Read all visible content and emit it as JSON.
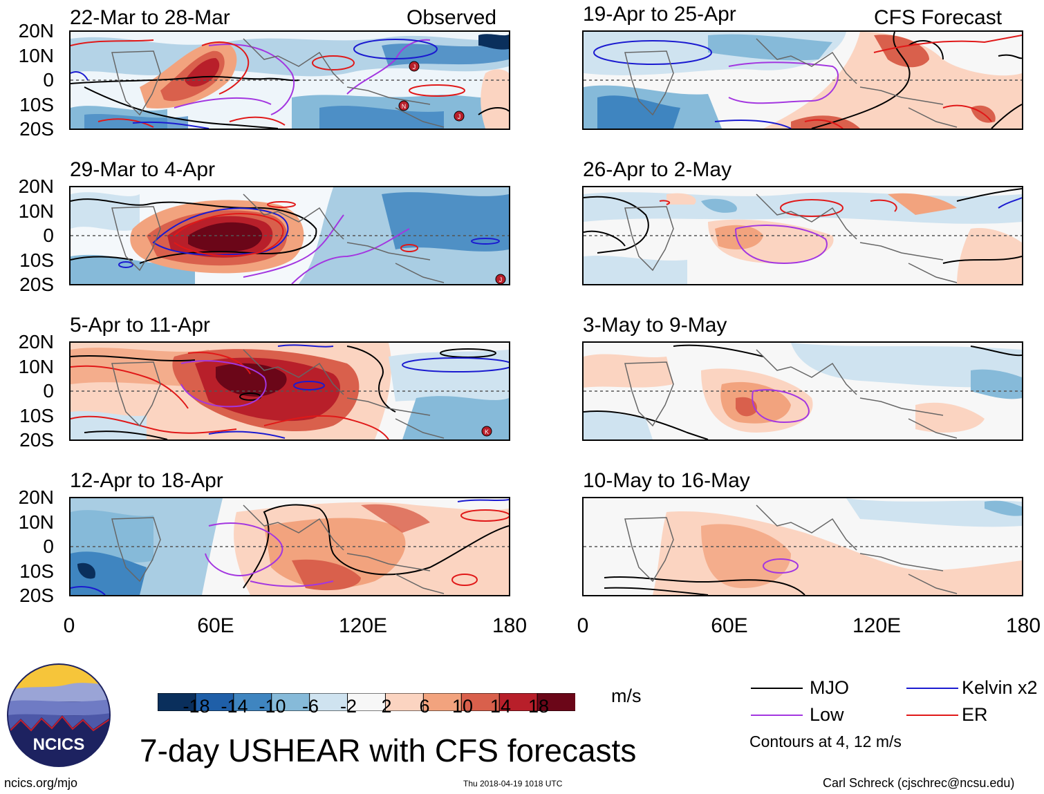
{
  "column_headers": {
    "observed": "Observed",
    "forecast": "CFS Forecast"
  },
  "panels": [
    {
      "id": "p1",
      "title": "22-Mar to 28-Mar",
      "column": "observed",
      "storm_markers": [
        "J",
        "N",
        "J"
      ]
    },
    {
      "id": "p2",
      "title": "29-Mar to 4-Apr",
      "column": "observed",
      "storm_markers": [
        "J"
      ]
    },
    {
      "id": "p3",
      "title": "5-Apr to 11-Apr",
      "column": "observed",
      "storm_markers": [
        "K"
      ]
    },
    {
      "id": "p4",
      "title": "12-Apr to 18-Apr",
      "column": "observed",
      "storm_markers": []
    },
    {
      "id": "p5",
      "title": "19-Apr to 25-Apr",
      "column": "forecast",
      "storm_markers": []
    },
    {
      "id": "p6",
      "title": "26-Apr to 2-May",
      "column": "forecast",
      "storm_markers": []
    },
    {
      "id": "p7",
      "title": "3-May to 9-May",
      "column": "forecast",
      "storm_markers": []
    },
    {
      "id": "p8",
      "title": "10-May to 16-May",
      "column": "forecast",
      "storm_markers": []
    }
  ],
  "y_ticks": [
    "20N",
    "10N",
    "0",
    "10S",
    "20S"
  ],
  "x_ticks": [
    "0",
    "60E",
    "120E",
    "180"
  ],
  "colorbar": {
    "unit": "m/s",
    "labels": [
      "-18",
      "-14",
      "-10",
      "-6",
      "-2",
      "2",
      "6",
      "10",
      "14",
      "18"
    ],
    "colors": [
      "#0a2f5c",
      "#1f5fa8",
      "#3f85c0",
      "#86bad9",
      "#cfe3f0",
      "#f7f7f7",
      "#fbd4c1",
      "#f2a37e",
      "#d9604c",
      "#b81f2a",
      "#6b0618"
    ]
  },
  "legend": {
    "items": [
      {
        "label": "MJO",
        "color": "#000000"
      },
      {
        "label": "Kelvin x2",
        "color": "#1a1ad0"
      },
      {
        "label": "Low",
        "color": "#a336e0"
      },
      {
        "label": "ER",
        "color": "#e01818"
      }
    ],
    "contours_note": "Contours at 4, 12 m/s"
  },
  "logo_text": "NCICS",
  "main_title": "7-day USHEAR with CFS forecasts",
  "footer": {
    "website": "ncics.org/mjo",
    "timestamp": "Thu 2018-04-19 1018 UTC",
    "credit": "Carl Schreck (cjschrec@ncsu.edu)"
  }
}
